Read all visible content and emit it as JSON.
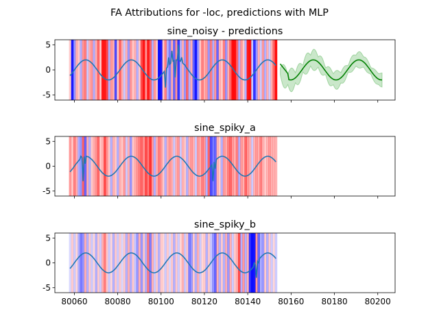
{
  "figure_title": "FA Attributions for -loc, predictions with MLP",
  "colors": {
    "series_line": "#1f77b4",
    "prediction_line": "#008000",
    "prediction_band": "#2ca02c",
    "attr_positive": "#ff0000",
    "attr_negative": "#0000ff"
  },
  "chart_data": [
    {
      "type": "line",
      "title": "sine_noisy - predictions",
      "xlim": [
        80051,
        80208
      ],
      "ylim": [
        -6,
        6
      ],
      "yticks": [
        -5,
        0,
        5
      ],
      "xticks": [
        80060,
        80080,
        80100,
        80120,
        80140,
        80160,
        80180,
        80200
      ],
      "show_xtick_labels": false,
      "series": [
        {
          "role": "input",
          "x_start": 80058,
          "x_end": 80153,
          "step": 0.5,
          "anomalies": [
            [
              80102,
              -3.5
            ],
            [
              80103.5,
              2.5
            ],
            [
              80105,
              3.8
            ],
            [
              80106.5,
              -1.5
            ],
            [
              80108,
              5
            ],
            [
              80109.5,
              2.5
            ],
            [
              80111,
              1
            ]
          ]
        },
        {
          "role": "prediction",
          "x_start": 80155,
          "x_end": 80202,
          "step": 0.5
        }
      ],
      "attributions": [
        [
          80058,
          0.2
        ],
        [
          80059,
          -0.9
        ],
        [
          80060,
          -0.4
        ],
        [
          80061,
          0.3
        ],
        [
          80062,
          0.2
        ],
        [
          80063,
          -0.3
        ],
        [
          80064,
          0.4
        ],
        [
          80065,
          0.5
        ],
        [
          80066,
          -0.2
        ],
        [
          80067,
          0.3
        ],
        [
          80068,
          0.4
        ],
        [
          80069,
          -0.3
        ],
        [
          80070,
          0.3
        ],
        [
          80071,
          0.6
        ],
        [
          80072,
          0.2
        ],
        [
          80073,
          0.9
        ],
        [
          80074,
          0.9
        ],
        [
          80075,
          0.7
        ],
        [
          80076,
          -0.3
        ],
        [
          80077,
          0.4
        ],
        [
          80078,
          0.3
        ],
        [
          80079,
          -0.7
        ],
        [
          80080,
          0.2
        ],
        [
          80081,
          0.6
        ],
        [
          80082,
          0.3
        ],
        [
          80083,
          -0.2
        ],
        [
          80084,
          0.3
        ],
        [
          80085,
          -0.4
        ],
        [
          80086,
          0.4
        ],
        [
          80087,
          0.2
        ],
        [
          80088,
          0.3
        ],
        [
          80089,
          -0.3
        ],
        [
          80090,
          0.2
        ],
        [
          80091,
          0.7
        ],
        [
          80092,
          0.9
        ],
        [
          80093,
          0.4
        ],
        [
          80094,
          0.9
        ],
        [
          80095,
          0.6
        ],
        [
          80096,
          -0.3
        ],
        [
          80097,
          0.4
        ],
        [
          80098,
          0.2
        ],
        [
          80099,
          -0.95
        ],
        [
          80100,
          -0.9
        ],
        [
          80101,
          0.2
        ],
        [
          80102,
          0.5
        ],
        [
          80103,
          -0.3
        ],
        [
          80104,
          -0.5
        ],
        [
          80105,
          0.3
        ],
        [
          80106,
          -0.6
        ],
        [
          80107,
          0.4
        ],
        [
          80108,
          -0.8
        ],
        [
          80109,
          -0.3
        ],
        [
          80110,
          0.3
        ],
        [
          80111,
          -0.4
        ],
        [
          80112,
          0.6
        ],
        [
          80113,
          -0.3
        ],
        [
          80114,
          0.3
        ],
        [
          80115,
          -0.6
        ],
        [
          80116,
          -0.9
        ],
        [
          80117,
          -0.4
        ],
        [
          80118,
          0.2
        ],
        [
          80119,
          0.5
        ],
        [
          80120,
          0.3
        ],
        [
          80121,
          0.4
        ],
        [
          80122,
          -0.4
        ],
        [
          80123,
          0.5
        ],
        [
          80124,
          -0.3
        ],
        [
          80125,
          0.4
        ],
        [
          80126,
          -0.6
        ],
        [
          80127,
          0.3
        ],
        [
          80128,
          0.2
        ],
        [
          80129,
          0.5
        ],
        [
          80130,
          -0.4
        ],
        [
          80131,
          0.3
        ],
        [
          80132,
          0.6
        ],
        [
          80133,
          0.95
        ],
        [
          80134,
          0.95
        ],
        [
          80135,
          0.6
        ],
        [
          80136,
          -0.3
        ],
        [
          80137,
          0.4
        ],
        [
          80138,
          0.2
        ],
        [
          80139,
          -0.3
        ],
        [
          80140,
          0.9
        ],
        [
          80141,
          0.95
        ],
        [
          80142,
          -0.2
        ],
        [
          80143,
          -0.8
        ],
        [
          80144,
          -0.4
        ],
        [
          80145,
          0.3
        ],
        [
          80146,
          -0.2
        ],
        [
          80147,
          0.4
        ],
        [
          80148,
          -0.3
        ],
        [
          80149,
          0.3
        ],
        [
          80150,
          -0.2
        ],
        [
          80151,
          0.3
        ],
        [
          80152,
          0.6
        ],
        [
          80153,
          0.95
        ]
      ]
    },
    {
      "type": "line",
      "title": "sine_spiky_a",
      "xlim": [
        80051,
        80208
      ],
      "ylim": [
        -6,
        6
      ],
      "yticks": [
        -5,
        0,
        5
      ],
      "xticks": [
        80060,
        80080,
        80100,
        80120,
        80140,
        80160,
        80180,
        80200
      ],
      "show_xtick_labels": false,
      "series": [
        {
          "role": "input",
          "x_start": 80058,
          "x_end": 80153,
          "step": 0.5,
          "anomalies": [
            [
              80063,
              2
            ],
            [
              80064,
              -3
            ],
            [
              80065,
              0.5
            ],
            [
              80123,
              0
            ],
            [
              80124,
              -3
            ],
            [
              80125,
              -0.5
            ]
          ]
        }
      ],
      "attributions": [
        [
          80058,
          0.4
        ],
        [
          80059,
          0.2
        ],
        [
          80060,
          0.5
        ],
        [
          80061,
          0.3
        ],
        [
          80062,
          -0.3
        ],
        [
          80063,
          -0.4
        ],
        [
          80064,
          0.6
        ],
        [
          80065,
          -0.6
        ],
        [
          80066,
          0.3
        ],
        [
          80067,
          -0.3
        ],
        [
          80068,
          0.2
        ],
        [
          80069,
          0.3
        ],
        [
          80070,
          0.4
        ],
        [
          80071,
          0.6
        ],
        [
          80072,
          0.2
        ],
        [
          80073,
          0.3
        ],
        [
          80074,
          0.7
        ],
        [
          80075,
          0.4
        ],
        [
          80076,
          0.2
        ],
        [
          80077,
          -0.3
        ],
        [
          80078,
          0.3
        ],
        [
          80079,
          0.2
        ],
        [
          80080,
          -0.3
        ],
        [
          80081,
          0.3
        ],
        [
          80082,
          0.2
        ],
        [
          80083,
          0.4
        ],
        [
          80084,
          -0.2
        ],
        [
          80085,
          0.3
        ],
        [
          80086,
          -0.4
        ],
        [
          80087,
          0.2
        ],
        [
          80088,
          0.3
        ],
        [
          80089,
          0.4
        ],
        [
          80090,
          0.5
        ],
        [
          80091,
          0.6
        ],
        [
          80092,
          0.4
        ],
        [
          80093,
          0.7
        ],
        [
          80094,
          0.5
        ],
        [
          80095,
          0.8
        ],
        [
          80096,
          0.4
        ],
        [
          80097,
          -0.3
        ],
        [
          80098,
          0.3
        ],
        [
          80099,
          0.5
        ],
        [
          80100,
          0.4
        ],
        [
          80101,
          0.2
        ],
        [
          80102,
          -0.3
        ],
        [
          80103,
          0.3
        ],
        [
          80104,
          0.4
        ],
        [
          80105,
          0.3
        ],
        [
          80106,
          -0.2
        ],
        [
          80107,
          0.3
        ],
        [
          80108,
          0.4
        ],
        [
          80109,
          -0.2
        ],
        [
          80110,
          0.3
        ],
        [
          80111,
          0.2
        ],
        [
          80112,
          -0.3
        ],
        [
          80113,
          0.3
        ],
        [
          80114,
          0.4
        ],
        [
          80115,
          0.3
        ],
        [
          80116,
          -0.2
        ],
        [
          80117,
          0.4
        ],
        [
          80118,
          0.3
        ],
        [
          80119,
          0.5
        ],
        [
          80120,
          0.4
        ],
        [
          80121,
          -0.3
        ],
        [
          80122,
          0.6
        ],
        [
          80123,
          -0.7
        ],
        [
          80124,
          -0.5
        ],
        [
          80125,
          -0.6
        ],
        [
          80126,
          0.3
        ],
        [
          80127,
          0.2
        ],
        [
          80128,
          -0.3
        ],
        [
          80129,
          0.4
        ],
        [
          80130,
          0.3
        ],
        [
          80131,
          0.5
        ],
        [
          80132,
          0.6
        ],
        [
          80133,
          0.4
        ],
        [
          80134,
          0.3
        ],
        [
          80135,
          0.5
        ],
        [
          80136,
          -0.3
        ],
        [
          80137,
          0.4
        ],
        [
          80138,
          0.3
        ],
        [
          80139,
          0.6
        ],
        [
          80140,
          0.4
        ],
        [
          80141,
          0.3
        ],
        [
          80142,
          -0.2
        ],
        [
          80143,
          0.3
        ],
        [
          80144,
          0.4
        ],
        [
          80145,
          0.3
        ],
        [
          80146,
          0.5
        ],
        [
          80147,
          0.3
        ],
        [
          80148,
          0.2
        ],
        [
          80149,
          0.3
        ],
        [
          80150,
          0.4
        ],
        [
          80151,
          0.3
        ],
        [
          80152,
          0.3
        ],
        [
          80153,
          0.3
        ]
      ]
    },
    {
      "type": "line",
      "title": "sine_spiky_b",
      "xlim": [
        80051,
        80208
      ],
      "ylim": [
        -6,
        6
      ],
      "yticks": [
        -5,
        0,
        5
      ],
      "xticks": [
        80060,
        80080,
        80100,
        80120,
        80140,
        80160,
        80180,
        80200
      ],
      "show_xtick_labels": true,
      "series": [
        {
          "role": "input",
          "x_start": 80058,
          "x_end": 80153,
          "step": 0.5,
          "anomalies": [
            [
              80143,
              0
            ],
            [
              80144,
              -3
            ],
            [
              80145,
              0
            ]
          ]
        }
      ],
      "attributions": [
        [
          80058,
          -0.15
        ],
        [
          80059,
          0.2
        ],
        [
          80060,
          -0.2
        ],
        [
          80061,
          0.15
        ],
        [
          80062,
          -0.3
        ],
        [
          80063,
          -0.5
        ],
        [
          80064,
          -0.4
        ],
        [
          80065,
          0.3
        ],
        [
          80066,
          -0.3
        ],
        [
          80067,
          0.2
        ],
        [
          80068,
          -0.2
        ],
        [
          80069,
          0.15
        ],
        [
          80070,
          -0.3
        ],
        [
          80071,
          0.2
        ],
        [
          80072,
          -0.2
        ],
        [
          80073,
          0.3
        ],
        [
          80074,
          0.5
        ],
        [
          80075,
          0.2
        ],
        [
          80076,
          -0.2
        ],
        [
          80077,
          0.15
        ],
        [
          80078,
          -0.3
        ],
        [
          80079,
          0.2
        ],
        [
          80080,
          -0.2
        ],
        [
          80081,
          0.2
        ],
        [
          80082,
          -0.15
        ],
        [
          80083,
          0.2
        ],
        [
          80084,
          -0.3
        ],
        [
          80085,
          0.3
        ],
        [
          80086,
          -0.3
        ],
        [
          80087,
          0.2
        ],
        [
          80088,
          -0.2
        ],
        [
          80089,
          -0.4
        ],
        [
          80090,
          0.3
        ],
        [
          80091,
          -0.4
        ],
        [
          80092,
          0.2
        ],
        [
          80093,
          -0.3
        ],
        [
          80094,
          0.5
        ],
        [
          80095,
          -0.5
        ],
        [
          80096,
          0.3
        ],
        [
          80097,
          -0.2
        ],
        [
          80098,
          0.2
        ],
        [
          80099,
          -0.3
        ],
        [
          80100,
          0.2
        ],
        [
          80101,
          0.15
        ],
        [
          80102,
          -0.2
        ],
        [
          80103,
          0.2
        ],
        [
          80104,
          -0.15
        ],
        [
          80105,
          0.2
        ],
        [
          80106,
          -0.3
        ],
        [
          80107,
          0.2
        ],
        [
          80108,
          -0.2
        ],
        [
          80109,
          0.15
        ],
        [
          80110,
          0.3
        ],
        [
          80111,
          -0.2
        ],
        [
          80112,
          0.2
        ],
        [
          80113,
          -0.5
        ],
        [
          80114,
          -0.4
        ],
        [
          80115,
          0.2
        ],
        [
          80116,
          -0.3
        ],
        [
          80117,
          0.3
        ],
        [
          80118,
          -0.2
        ],
        [
          80119,
          0.15
        ],
        [
          80120,
          0.2
        ],
        [
          80121,
          -0.3
        ],
        [
          80122,
          0.2
        ],
        [
          80123,
          -0.2
        ],
        [
          80124,
          -0.4
        ],
        [
          80125,
          -0.6
        ],
        [
          80126,
          0.3
        ],
        [
          80127,
          -0.3
        ],
        [
          80128,
          0.2
        ],
        [
          80129,
          -0.3
        ],
        [
          80130,
          0.3
        ],
        [
          80131,
          -0.4
        ],
        [
          80132,
          0.3
        ],
        [
          80133,
          -0.2
        ],
        [
          80134,
          0.2
        ],
        [
          80135,
          0.3
        ],
        [
          80136,
          0.7
        ],
        [
          80137,
          -0.3
        ],
        [
          80138,
          0.4
        ],
        [
          80139,
          -0.3
        ],
        [
          80140,
          0.3
        ],
        [
          80141,
          -0.8
        ],
        [
          80142,
          -0.95
        ],
        [
          80143,
          -0.9
        ],
        [
          80144,
          0.4
        ],
        [
          80145,
          -0.6
        ],
        [
          80146,
          -0.3
        ],
        [
          80147,
          -0.4
        ],
        [
          80148,
          0.2
        ],
        [
          80149,
          -0.3
        ],
        [
          80150,
          0.2
        ],
        [
          80151,
          -0.2
        ],
        [
          80152,
          0.15
        ],
        [
          80153,
          -0.2
        ]
      ]
    }
  ]
}
